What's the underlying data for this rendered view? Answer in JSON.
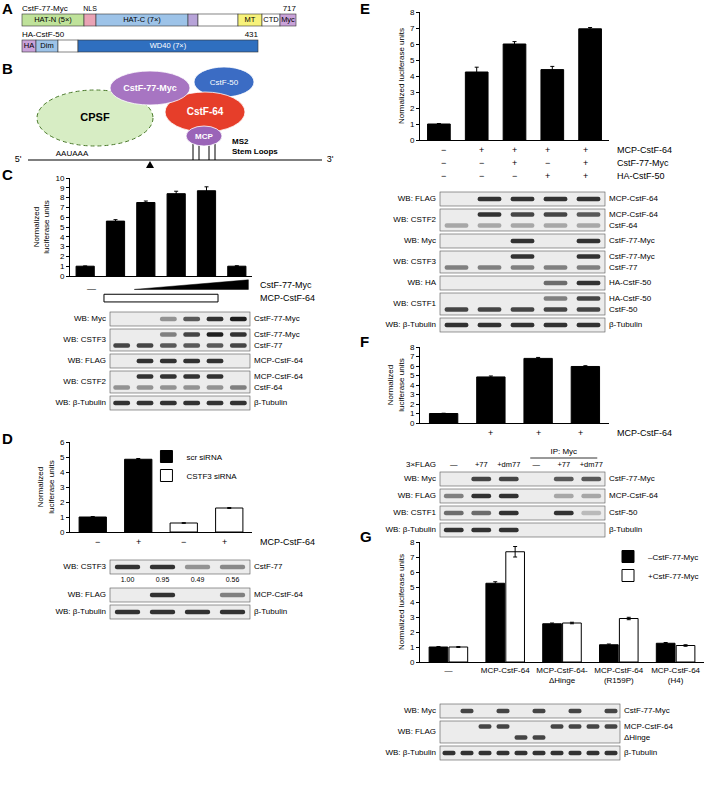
{
  "figure": {
    "A": {
      "panel": "A",
      "proteins": [
        {
          "name": "CstF-77-Myc",
          "end": "717",
          "domains": [
            {
              "label": "HAT-N (5×)",
              "color": "#bfe29a"
            },
            {
              "label": null,
              "color": "#e9a3b5"
            },
            {
              "label": "HAT-C (7×)",
              "color": "#9dc3e8"
            },
            {
              "label": null,
              "color": "#b7a3d8"
            },
            {
              "label": null,
              "color": "#ffffff"
            },
            {
              "label": "MT",
              "color": "#f7f27a"
            },
            {
              "label": "CTD",
              "color": "#ffffff"
            },
            {
              "label": "Myc",
              "color": "#c9a2d9"
            }
          ],
          "marks": [
            {
              "label": "NLS",
              "at": 1
            }
          ]
        },
        {
          "name": "HA-CstF-50",
          "end": "431",
          "domains": [
            {
              "label": "HA",
              "color": "#c9a2d9"
            },
            {
              "label": "Dim",
              "color": "#9dc3e8"
            },
            {
              "label": null,
              "color": "#ffffff"
            },
            {
              "label": "WD40 (7×)",
              "color": "#2f6fbf"
            }
          ]
        }
      ]
    },
    "B": {
      "panel": "B",
      "complexes": [
        {
          "label": "CPSF",
          "color": "#d7edc4"
        },
        {
          "label": "CstF-50",
          "color": "#3b6cc4"
        },
        {
          "label": "CstF-64",
          "color": "#e63e2a"
        },
        {
          "label": "CstF-77-Myc",
          "color": "#a775c2"
        },
        {
          "label": "MCP",
          "color": "#9a64b8"
        }
      ],
      "rna": {
        "five": "5'",
        "signal": "AAUAAA",
        "three": "3'"
      },
      "stem_loops": "MS2 Stem Loops"
    }
  },
  "chart_data": [
    {
      "panel": "C",
      "type": "bar",
      "y_label": "Normalized luciferase units",
      "categories": [
        null,
        null,
        null,
        null,
        null,
        null
      ],
      "values": [
        1.0,
        5.6,
        7.5,
        8.4,
        8.7,
        1.0
      ],
      "errors": [
        0.03,
        0.15,
        0.15,
        0.25,
        0.4,
        0.05
      ],
      "color": "#000000",
      "ylim": [
        0,
        10
      ],
      "yticks": [
        0,
        1,
        2,
        3,
        4,
        5,
        6,
        7,
        8,
        9,
        10
      ],
      "conditions": {
        "blank": {
          "label": "—",
          "at": 0
        },
        "ramp": {
          "label": "CstF-77-Myc",
          "from": 2,
          "to": 5
        },
        "bracket": {
          "label": "MCP-CstF-64",
          "from": 1,
          "to": 4
        }
      },
      "blot": {
        "rows": [
          {
            "wb": "WB: Myc",
            "bands": [
              {
                "label": "CstF-77-Myc",
                "lanes": [
                  0,
                  0,
                  0.4,
                  0.7,
                  0.9,
                  1
                ]
              }
            ]
          },
          {
            "wb": "WB: CSTF3",
            "bands": [
              {
                "label": "CstF-77-Myc",
                "lanes": [
                  0,
                  0,
                  0.5,
                  0.8,
                  1,
                  0.9
                ]
              },
              {
                "label": "CstF-77",
                "lanes": [
                  0.8,
                  0.8,
                  0.7,
                  0.7,
                  0.7,
                  0.8
                ]
              }
            ]
          },
          {
            "wb": "WB: FLAG",
            "bands": [
              {
                "label": "MCP-CstF-64",
                "lanes": [
                  0,
                  0.9,
                  0.9,
                  0.9,
                  0.9,
                  0
                ]
              }
            ]
          },
          {
            "wb": "WB: CSTF2",
            "bands": [
              {
                "label": "MCP-CstF-64",
                "lanes": [
                  0,
                  0.9,
                  0.9,
                  0.9,
                  0.9,
                  0
                ]
              },
              {
                "label": "CstF-64",
                "lanes": [
                  0.4,
                  0.4,
                  0.4,
                  0.4,
                  0.4,
                  0.5
                ]
              }
            ]
          },
          {
            "wb": "WB: β-Tubulin",
            "bands": [
              {
                "label": "β-Tubulin",
                "lanes": [
                  0.9,
                  0.9,
                  0.9,
                  0.9,
                  0.9,
                  0.9
                ]
              }
            ]
          }
        ]
      }
    },
    {
      "panel": "D",
      "type": "bar",
      "y_label": "Normalized luciferase units",
      "categories": [
        null,
        null,
        null,
        null
      ],
      "series": [
        {
          "name": "scr siRNA",
          "color": "#000000",
          "values": [
            1.0,
            4.85,
            null,
            null
          ],
          "errors": [
            0.03,
            0.05,
            null,
            null
          ]
        },
        {
          "name": "CSTF3 siRNA",
          "color": "#ffffff",
          "values": [
            null,
            null,
            0.6,
            1.6
          ],
          "errors": [
            null,
            null,
            0.02,
            0.03
          ]
        }
      ],
      "legend": "top",
      "ylim": [
        0,
        6
      ],
      "yticks": [
        0,
        1,
        2,
        3,
        4,
        5,
        6
      ],
      "conditions": [
        {
          "label": "MCP-CstF-64",
          "values": [
            "−",
            "+",
            "−",
            "+"
          ]
        }
      ],
      "blot": {
        "rows": [
          {
            "wb": "WB: CSTF3",
            "bands": [
              {
                "label": "CstF-77",
                "lanes": [
                  0.9,
                  0.9,
                  0.4,
                  0.45
                ]
              }
            ],
            "quant": [
              "1.00",
              "0.95",
              "0.49",
              "0.56"
            ]
          },
          {
            "wb": "WB: FLAG",
            "bands": [
              {
                "label": "MCP-CstF-64",
                "lanes": [
                  0,
                  0.9,
                  0,
                  0.5
                ]
              }
            ]
          },
          {
            "wb": "WB: β-Tubulin",
            "bands": [
              {
                "label": "β-Tubulin",
                "lanes": [
                  0.9,
                  0.9,
                  0.9,
                  0.9
                ]
              }
            ]
          }
        ]
      }
    },
    {
      "panel": "E",
      "type": "bar",
      "y_label": "Normalized luciferase units",
      "categories": [
        null,
        null,
        null,
        null,
        null
      ],
      "values": [
        1.0,
        4.25,
        6.0,
        4.4,
        6.95
      ],
      "errors": [
        0.03,
        0.3,
        0.15,
        0.2,
        0.08
      ],
      "color": "#000000",
      "ylim": [
        0,
        8
      ],
      "yticks": [
        0,
        1,
        2,
        3,
        4,
        5,
        6,
        7,
        8
      ],
      "conditions": [
        {
          "label": "MCP-CstF-64",
          "values": [
            "−",
            "+",
            "+",
            "+",
            "+"
          ]
        },
        {
          "label": "CstF-77-Myc",
          "values": [
            "−",
            "−",
            "+",
            "−",
            "+"
          ]
        },
        {
          "label": "HA-CstF-50",
          "values": [
            "−",
            "−",
            "−",
            "+",
            "+"
          ]
        }
      ],
      "blot": {
        "rows": [
          {
            "wb": "WB: FLAG",
            "bands": [
              {
                "label": "MCP-CstF-64",
                "lanes": [
                  0,
                  0.9,
                  0.9,
                  0.9,
                  0.9
                ]
              }
            ]
          },
          {
            "wb": "WB: CSTF2",
            "bands": [
              {
                "label": "MCP-CstF-64",
                "lanes": [
                  0,
                  0.9,
                  0.8,
                  0.8,
                  0.7
                ]
              },
              {
                "label": "CstF-64",
                "lanes": [
                  0.3,
                  0.3,
                  0.3,
                  0.3,
                  0.3
                ]
              }
            ]
          },
          {
            "wb": "WB: Myc",
            "bands": [
              {
                "label": "CstF-77-Myc",
                "lanes": [
                  0,
                  0,
                  0.9,
                  0,
                  0.9
                ]
              }
            ]
          },
          {
            "wb": "WB: CSTF3",
            "bands": [
              {
                "label": "CstF-77-Myc",
                "lanes": [
                  0,
                  0,
                  0.9,
                  0,
                  0.9
                ]
              },
              {
                "label": "CstF-77",
                "lanes": [
                  0.5,
                  0.5,
                  0.5,
                  0.5,
                  0.5
                ]
              }
            ]
          },
          {
            "wb": "WB: HA",
            "bands": [
              {
                "label": "HA-CstF-50",
                "lanes": [
                  0,
                  0,
                  0,
                  0.6,
                  0.9
                ]
              }
            ]
          },
          {
            "wb": "WB: CSTF1",
            "bands": [
              {
                "label": "HA-CstF-50",
                "lanes": [
                  0,
                  0,
                  0,
                  0.5,
                  0.8
                ]
              },
              {
                "label": "CstF-50",
                "lanes": [
                  0.8,
                  0.8,
                  0.8,
                  0.8,
                  0.8
                ]
              }
            ]
          },
          {
            "wb": "WB: β-Tubulin",
            "bands": [
              {
                "label": "β-Tubulin",
                "lanes": [
                  0.9,
                  0.9,
                  0.9,
                  0.9,
                  0.9
                ]
              }
            ]
          }
        ]
      }
    },
    {
      "panel": "F",
      "type": "bar",
      "y_label": "Normalized luciferase units",
      "categories": [
        null,
        null,
        null,
        null
      ],
      "values": [
        1.0,
        4.85,
        6.8,
        5.95
      ],
      "errors": [
        0.03,
        0.1,
        0.1,
        0.08
      ],
      "color": "#000000",
      "ylim": [
        0,
        8
      ],
      "yticks": [
        0,
        1,
        2,
        3,
        4,
        5,
        6,
        7,
        8
      ],
      "conditions": [
        {
          "label": "MCP-CstF-64",
          "values": [
            null,
            "+",
            "+",
            "+"
          ]
        }
      ],
      "blot": {
        "header": {
          "label": "3×FLAG",
          "lanes": [
            "—",
            "+77",
            "+dm77",
            "—",
            "+77",
            "+dm77"
          ],
          "group": {
            "label": "IP: Myc",
            "from": 3,
            "to": 5
          }
        },
        "rows": [
          {
            "wb": "WB: Myc",
            "bands": [
              {
                "label": "CstF-77-Myc",
                "lanes": [
                  0,
                  0.8,
                  0.8,
                  0,
                  0.7,
                  0.7
                ]
              }
            ]
          },
          {
            "wb": "WB: FLAG",
            "bands": [
              {
                "label": "MCP-CstF-64",
                "lanes": [
                  0.5,
                  0.9,
                  0.9,
                  0,
                  0.3,
                  0.3
                ]
              }
            ]
          },
          {
            "wb": "WB: CSTF1",
            "bands": [
              {
                "label": "CstF-50",
                "lanes": [
                  0.6,
                  0.6,
                  0.9,
                  0,
                  0.9,
                  0.2
                ]
              }
            ]
          },
          {
            "wb": "WB: β-Tubulin",
            "bands": [
              {
                "label": "β-Tubulin",
                "lanes": [
                  0.9,
                  0.9,
                  0.9,
                  0,
                  0,
                  0
                ]
              }
            ]
          }
        ]
      }
    },
    {
      "panel": "G",
      "type": "bar",
      "y_label": "Normalized luciferase units",
      "categories": [
        "—",
        "MCP-CstF-64",
        "MCP-CstF-64-ΔHinge",
        "MCP-CstF-64 (R159P)",
        "MCP-CstF-64 (H4)"
      ],
      "series": [
        {
          "name": "–CstF-77-Myc",
          "color": "#000000",
          "values": [
            1.0,
            5.25,
            2.55,
            1.15,
            1.25
          ],
          "errors": [
            0.03,
            0.1,
            0.05,
            0.05,
            0.05
          ]
        },
        {
          "name": "+CstF-77-Myc",
          "color": "#ffffff",
          "values": [
            1.0,
            7.35,
            2.6,
            2.9,
            1.1
          ],
          "errors": [
            0.03,
            0.35,
            0.05,
            0.08,
            0.05
          ]
        }
      ],
      "legend": "top right",
      "ylim": [
        0,
        8
      ],
      "yticks": [
        0,
        1,
        2,
        3,
        4,
        5,
        6,
        7,
        8
      ],
      "blot": {
        "rows": [
          {
            "wb": "WB: Myc",
            "bands": [
              {
                "label": "CstF-77-Myc",
                "lanes": [
                  0,
                  0.8,
                  0,
                  0.8,
                  0,
                  0.8,
                  0,
                  0.8,
                  0,
                  0.8
                ]
              }
            ]
          },
          {
            "wb": "WB: FLAG",
            "bands": [
              {
                "label": "MCP-CstF-64",
                "lanes": [
                  0,
                  0,
                  0.8,
                  0.8,
                  0,
                  0,
                  0.8,
                  0.8,
                  0.8,
                  0.8
                ]
              },
              {
                "label": "ΔHinge",
                "lanes": [
                  0,
                  0,
                  0,
                  0,
                  0.8,
                  0.8,
                  0,
                  0,
                  0,
                  0
                ]
              }
            ]
          },
          {
            "wb": "WB: β-Tubulin",
            "bands": [
              {
                "label": "β-Tubulin",
                "lanes": [
                  0.9,
                  0.9,
                  0.9,
                  0.9,
                  0.9,
                  0.9,
                  0.9,
                  0.9,
                  0.9,
                  0.9
                ]
              }
            ]
          }
        ]
      }
    }
  ]
}
